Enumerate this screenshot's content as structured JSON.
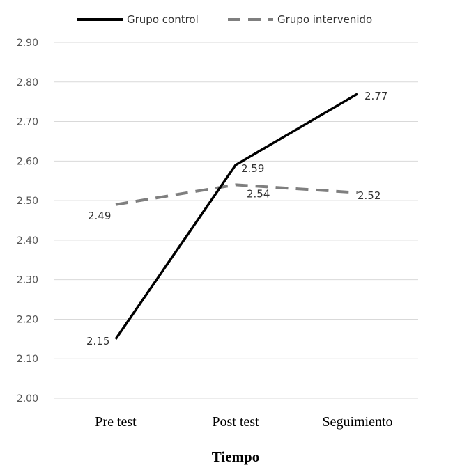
{
  "chart_data": {
    "type": "line",
    "categories": [
      "Pre test",
      "Post test",
      "Seguimiento"
    ],
    "series": [
      {
        "name": "Grupo control",
        "values": [
          2.15,
          2.59,
          2.77
        ],
        "color": "#000000",
        "style": "solid"
      },
      {
        "name": "Grupo intervenido",
        "values": [
          2.49,
          2.54,
          2.52
        ],
        "color": "#7f7f7f",
        "style": "dashed"
      }
    ],
    "data_labels": [
      [
        "2.15",
        "2.59",
        "2.77"
      ],
      [
        "2.49",
        "2.54",
        "2.52"
      ]
    ],
    "yticks": [
      "2.00",
      "2.10",
      "2.20",
      "2.30",
      "2.40",
      "2.50",
      "2.60",
      "2.70",
      "2.80",
      "2.90"
    ],
    "ylim": [
      2.0,
      2.9
    ],
    "xlabel": "Tiempo",
    "ylabel": "",
    "title": "",
    "grid": true,
    "legend_position": "top"
  }
}
